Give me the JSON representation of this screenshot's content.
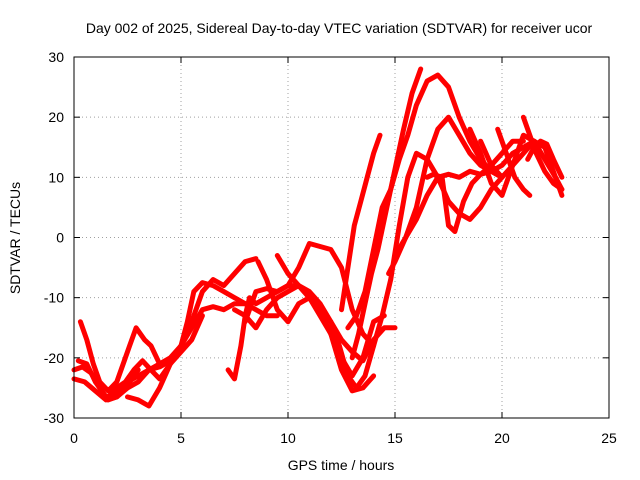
{
  "chart_data": {
    "type": "line",
    "title": "Day 002 of 2025, Sidereal Day-to-day VTEC variation (SDTVAR) for receiver ucor",
    "xlabel": "GPS time / hours",
    "ylabel": "SDTVAR / TECUs",
    "xlim": [
      0,
      25
    ],
    "ylim": [
      -30,
      30
    ],
    "xticks": [
      0,
      5,
      10,
      15,
      20,
      25
    ],
    "yticks": [
      -30,
      -20,
      -10,
      0,
      10,
      20,
      30
    ],
    "grid": true,
    "legend": "none",
    "color": "#ff0000",
    "series": [
      {
        "x": [
          0.0,
          0.4,
          0.8,
          1.2,
          1.6,
          2.0,
          2.4,
          2.8,
          3.0
        ],
        "y": [
          -22,
          -21.5,
          -22.5,
          -25,
          -27,
          -26.5,
          -25,
          -23,
          -22
        ]
      },
      {
        "x": [
          0.0,
          0.5,
          1.0,
          1.5,
          2.0,
          2.5,
          3.0,
          3.5,
          4.0,
          4.5,
          5.0,
          5.5,
          6.0,
          6.5,
          7.0,
          7.5,
          8.0
        ],
        "y": [
          -23.5,
          -24,
          -25.5,
          -27,
          -26.5,
          -25,
          -24,
          -22,
          -21,
          -20,
          -18,
          -15,
          -12,
          -11.5,
          -12,
          -11,
          -11
        ]
      },
      {
        "x": [
          0.3,
          0.6,
          0.9,
          1.2,
          1.6,
          2.0,
          2.3,
          2.6,
          2.9,
          3.3,
          3.6,
          4.0
        ],
        "y": [
          -14,
          -17,
          -21,
          -24,
          -25.5,
          -24,
          -21,
          -18,
          -15,
          -17,
          -18,
          -21
        ]
      },
      {
        "x": [
          0.2,
          0.6,
          1.0,
          1.5,
          2.0,
          2.5,
          3.0,
          3.5,
          4.0,
          4.5,
          5.0,
          5.5,
          6.0,
          6.5,
          7.0,
          7.5,
          8.0,
          8.5
        ],
        "y": [
          -20.5,
          -21,
          -24,
          -26.5,
          -26,
          -24,
          -23,
          -22,
          -21.5,
          -20.5,
          -18,
          -14,
          -9,
          -7,
          -8,
          -6,
          -4,
          -3.5
        ]
      },
      {
        "x": [
          1.6,
          2.0,
          2.4,
          2.8,
          3.2,
          3.6,
          4.0,
          4.5,
          5.0,
          5.5,
          6.0
        ],
        "y": [
          -26.5,
          -25,
          -24,
          -22,
          -20.5,
          -22,
          -23.5,
          -21,
          -19,
          -17,
          -13
        ]
      },
      {
        "x": [
          2.5,
          3.0,
          3.5,
          4.0,
          4.5,
          5.0,
          5.3,
          5.6,
          6.0,
          6.5,
          7.0,
          7.5,
          8.0,
          8.5,
          9.0,
          9.5
        ],
        "y": [
          -26.5,
          -27,
          -28,
          -25,
          -21,
          -18,
          -14,
          -9,
          -7.5,
          -8,
          -9,
          -10,
          -11,
          -12,
          -13,
          -13
        ]
      },
      {
        "x": [
          7.2,
          7.5,
          7.8,
          8.0,
          8.2,
          8.5,
          9.0,
          9.5,
          10.0,
          10.5,
          11.0,
          11.5,
          12.0
        ],
        "y": [
          -22,
          -23.5,
          -18,
          -13,
          -10,
          -11,
          -10,
          -9,
          -8,
          -8,
          -9,
          -11,
          -14
        ]
      },
      {
        "x": [
          7.5,
          8.0,
          8.5,
          9.0,
          9.5,
          10.0,
          10.5,
          11.0,
          11.5,
          12.0,
          12.5,
          13.0,
          13.5,
          14.0,
          14.5,
          15.0
        ],
        "y": [
          -12,
          -13,
          -15,
          -12,
          -10,
          -9,
          -8,
          -10,
          -12,
          -14,
          -17,
          -19,
          -20.5,
          -17,
          -15,
          -15
        ]
      },
      {
        "x": [
          8.0,
          8.5,
          9.0,
          9.5,
          10.0,
          10.5,
          11.0,
          11.5,
          12.0,
          12.5,
          13.0,
          13.5,
          14.0
        ],
        "y": [
          -14,
          -9,
          -8.5,
          -9,
          -8,
          -5,
          -1,
          -1.5,
          -2,
          -5,
          -12,
          -16,
          -18
        ]
      },
      {
        "x": [
          8.6,
          9.0,
          9.5,
          10.0,
          10.5,
          11.0,
          11.5,
          12.0,
          12.5,
          13.0,
          13.5,
          14.0
        ],
        "y": [
          -4,
          -7,
          -12,
          -14,
          -11,
          -10,
          -12,
          -16,
          -22,
          -25.5,
          -25,
          -23
        ]
      },
      {
        "x": [
          9.5,
          10.0,
          10.5,
          11.0,
          11.5,
          12.0,
          12.5,
          13.0,
          13.5,
          14.0,
          14.5
        ],
        "y": [
          -3,
          -6,
          -8,
          -10,
          -13,
          -16,
          -20,
          -23,
          -20,
          -14,
          -13
        ]
      },
      {
        "x": [
          12.0,
          12.4,
          12.8,
          13.2,
          13.6,
          14.0,
          14.4,
          14.8,
          15.2,
          15.6,
          16.0,
          16.5,
          17.0,
          17.5,
          18.0,
          18.5,
          19.0,
          19.5,
          20.0
        ],
        "y": [
          -14,
          -18,
          -23,
          -25,
          -23,
          -18,
          -13,
          -7,
          2,
          10,
          14,
          13,
          10,
          6,
          4,
          3,
          5,
          8,
          10
        ]
      },
      {
        "x": [
          12.8,
          13.2,
          13.6,
          14.0,
          14.4,
          14.8,
          15.2,
          15.6,
          16.0,
          16.5,
          17.0,
          17.5,
          18.0,
          18.5,
          19.0,
          19.5,
          20.0
        ],
        "y": [
          -15,
          -13,
          -9,
          -2,
          5,
          8,
          13,
          17,
          22,
          26,
          27,
          25,
          20,
          16,
          13,
          11,
          10
        ]
      },
      {
        "x": [
          12.5,
          12.8,
          13.1,
          13.4,
          13.7,
          14.0,
          14.3
        ],
        "y": [
          -12,
          -5,
          2,
          6,
          10,
          14,
          17
        ]
      },
      {
        "x": [
          13.0,
          13.3,
          13.6,
          13.9,
          14.2,
          14.5,
          14.8,
          15.1,
          15.4,
          15.8,
          16.2
        ],
        "y": [
          -20,
          -16,
          -11,
          -6,
          -2,
          3,
          8,
          13,
          18,
          24,
          28
        ]
      },
      {
        "x": [
          14.7,
          15.0,
          15.5,
          16.0,
          16.5,
          17.0,
          17.5,
          18.0,
          18.5,
          19.0,
          19.5,
          20.0,
          20.5,
          21.0
        ],
        "y": [
          -6,
          -4,
          0,
          3,
          7,
          10,
          10.5,
          10,
          11,
          10.5,
          12,
          14,
          16,
          16
        ]
      },
      {
        "x": [
          15.0,
          15.5,
          16.0,
          16.5,
          17.0,
          17.5,
          18.0,
          18.5,
          19.0,
          19.5,
          20.0,
          20.5,
          21.0,
          21.5
        ],
        "y": [
          -3,
          0,
          5,
          13,
          18,
          20,
          17,
          14,
          12,
          11,
          12,
          14,
          15,
          16
        ]
      },
      {
        "x": [
          16.5,
          16.8,
          17.2,
          17.5,
          17.8,
          18.2,
          18.6,
          19.0,
          19.5,
          20.0
        ],
        "y": [
          10,
          10.5,
          10,
          2,
          1,
          6,
          9,
          10.5,
          11,
          10
        ]
      },
      {
        "x": [
          18.5,
          19.0,
          19.5,
          20.0,
          20.5,
          21.0,
          21.5,
          22.0,
          22.5,
          22.8
        ],
        "y": [
          18,
          14,
          9,
          7,
          12,
          17,
          16,
          13,
          10,
          8
        ]
      },
      {
        "x": [
          19.0,
          19.5,
          20.0,
          20.5,
          21.0,
          21.5,
          22.0,
          22.5,
          22.8
        ],
        "y": [
          16,
          12,
          10,
          12,
          14,
          16,
          15,
          10,
          7
        ]
      },
      {
        "x": [
          19.8,
          20.2,
          20.6,
          21.0,
          21.3
        ],
        "y": [
          18,
          14,
          10,
          8,
          7
        ]
      },
      {
        "x": [
          21.0,
          21.3,
          21.6,
          22.0,
          22.4,
          22.8
        ],
        "y": [
          20,
          17,
          14,
          11,
          9,
          8
        ]
      },
      {
        "x": [
          21.2,
          21.5,
          21.8,
          22.1,
          22.4,
          22.8
        ],
        "y": [
          13,
          15,
          16,
          15.5,
          13,
          10
        ]
      }
    ]
  }
}
